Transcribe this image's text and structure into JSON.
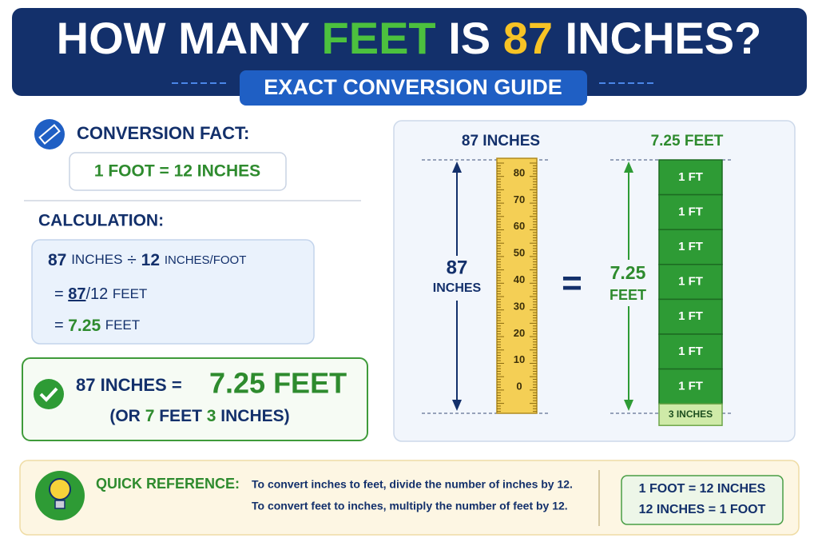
{
  "header": {
    "title_words": [
      "HOW",
      "MANY",
      "FEET",
      "IS",
      "87",
      "INCHES?"
    ],
    "subtitle": "EXACT CONVERSION GUIDE"
  },
  "fact": {
    "heading": "CONVERSION FACT:",
    "text": "1 FOOT = 12 INCHES"
  },
  "calculation": {
    "heading": "CALCULATION:",
    "lines": [
      [
        "87",
        "INCHES",
        "÷",
        "12",
        "INCHES/FOOT"
      ],
      [
        "=",
        "87",
        "/12",
        "FEET"
      ],
      [
        "=",
        "7.25",
        "FEET"
      ]
    ]
  },
  "result": {
    "lead": "87 INCHES =",
    "answer": "7.25 FEET",
    "detail": [
      "(OR",
      "7",
      "FEET",
      "3",
      "INCHES)"
    ]
  },
  "visual": {
    "inches_label": "87 INCHES",
    "inches_number": "87",
    "inches_unit": "INCHES",
    "ruler_labels": [
      80,
      70,
      60,
      50,
      40,
      30,
      20,
      10,
      0
    ],
    "equals": "=",
    "feet_label": "7.25 FEET",
    "feet_number": "7.25",
    "feet_unit": "FEET",
    "blocks": [
      "1 FT",
      "1 FT",
      "1 FT",
      "1 FT",
      "1 FT",
      "1 FT",
      "1 FT"
    ],
    "remainder": "3 INCHES"
  },
  "quick_reference": {
    "heading": "QUICK REFERENCE:",
    "lines": [
      "To convert inches to feet, divide the number of inches by 12.",
      "To convert feet to inches, multiply the number of feet by 12."
    ],
    "box": [
      "1 FOOT = 12 INCHES",
      "12 INCHES = 1 FOOT"
    ]
  }
}
